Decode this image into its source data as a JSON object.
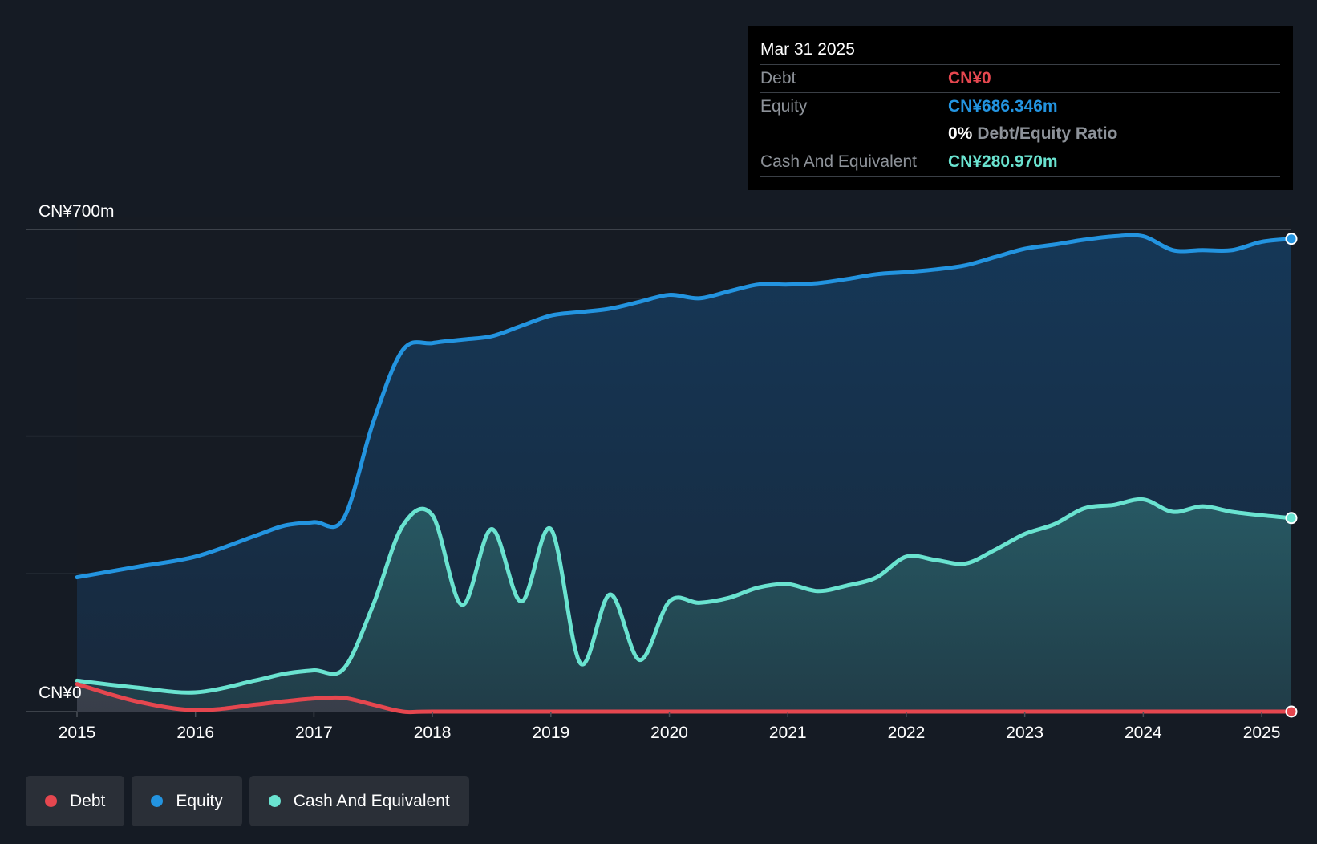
{
  "colors": {
    "debt": "#e5474f",
    "equity": "#2394e0",
    "cash": "#6ae3d0",
    "background": "#151b24",
    "plot_bg": "#161b23"
  },
  "tooltip": {
    "date": "Mar 31 2025",
    "debt_label": "Debt",
    "debt_value": "CN¥0",
    "equity_label": "Equity",
    "equity_value": "CN¥686.346m",
    "ratio_value": "0%",
    "ratio_label": "Debt/Equity Ratio",
    "cash_label": "Cash And Equivalent",
    "cash_value": "CN¥280.970m"
  },
  "legend": {
    "debt": "Debt",
    "equity": "Equity",
    "cash": "Cash And Equivalent"
  },
  "chart_data": {
    "type": "area",
    "title": "",
    "y_top_label": "CN¥700m",
    "y_bottom_label": "CN¥0",
    "ylim": [
      0,
      700
    ],
    "xlim": [
      2015,
      2025.25
    ],
    "x_ticks": [
      2015,
      2016,
      2017,
      2018,
      2019,
      2020,
      2021,
      2022,
      2023,
      2024,
      2025
    ],
    "x_tick_labels": [
      "2015",
      "2016",
      "2017",
      "2018",
      "2019",
      "2020",
      "2021",
      "2022",
      "2023",
      "2024",
      "2025"
    ],
    "series": [
      {
        "name": "Equity",
        "x": [
          2015,
          2015.5,
          2016,
          2016.5,
          2016.75,
          2017,
          2017.25,
          2017.5,
          2017.75,
          2018,
          2018.25,
          2018.5,
          2018.75,
          2019,
          2019.25,
          2019.5,
          2019.75,
          2020,
          2020.25,
          2020.5,
          2020.75,
          2021,
          2021.25,
          2021.5,
          2021.75,
          2022,
          2022.25,
          2022.5,
          2022.75,
          2023,
          2023.25,
          2023.5,
          2023.75,
          2024,
          2024.25,
          2024.5,
          2024.75,
          2025,
          2025.25
        ],
        "values": [
          195,
          210,
          225,
          255,
          270,
          275,
          280,
          420,
          525,
          535,
          540,
          545,
          560,
          575,
          580,
          585,
          595,
          605,
          600,
          610,
          620,
          620,
          622,
          628,
          635,
          638,
          642,
          648,
          660,
          672,
          678,
          685,
          690,
          690,
          670,
          670,
          670,
          682,
          686.346
        ]
      },
      {
        "name": "Cash And Equivalent",
        "x": [
          2015,
          2015.5,
          2016,
          2016.5,
          2016.75,
          2017,
          2017.25,
          2017.5,
          2017.75,
          2018,
          2018.25,
          2018.5,
          2018.75,
          2019,
          2019.25,
          2019.5,
          2019.75,
          2020,
          2020.25,
          2020.5,
          2020.75,
          2021,
          2021.25,
          2021.5,
          2021.75,
          2022,
          2022.25,
          2022.5,
          2022.75,
          2023,
          2023.25,
          2023.5,
          2023.75,
          2024,
          2024.25,
          2024.5,
          2024.75,
          2025,
          2025.25
        ],
        "values": [
          45,
          35,
          28,
          45,
          55,
          60,
          62,
          155,
          270,
          285,
          155,
          265,
          160,
          265,
          70,
          170,
          75,
          160,
          158,
          165,
          180,
          185,
          175,
          183,
          195,
          225,
          220,
          215,
          235,
          258,
          272,
          295,
          300,
          308,
          290,
          298,
          290,
          285,
          280.97
        ]
      },
      {
        "name": "Debt",
        "x": [
          2015,
          2015.5,
          2016,
          2016.5,
          2016.75,
          2017,
          2017.25,
          2017.5,
          2017.75,
          2018,
          2019,
          2020,
          2021,
          2022,
          2023,
          2024,
          2025,
          2025.25
        ],
        "values": [
          40,
          15,
          2,
          10,
          15,
          19,
          20,
          10,
          0,
          0,
          0,
          0,
          0,
          0,
          0,
          0,
          0,
          0
        ]
      }
    ]
  }
}
